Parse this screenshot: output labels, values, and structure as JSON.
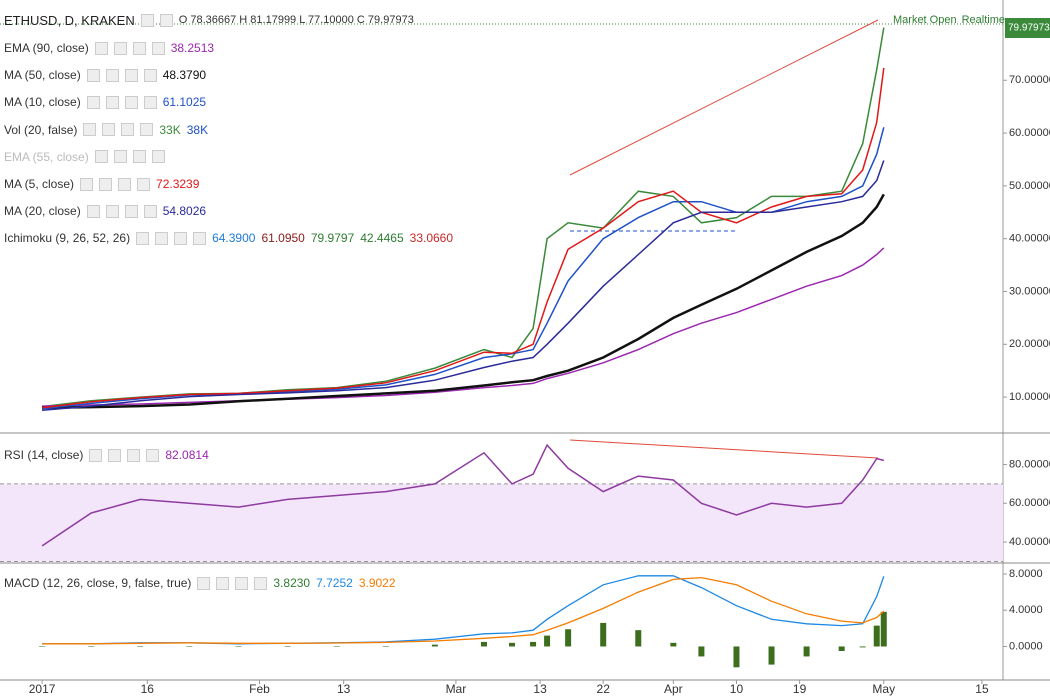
{
  "chart_data": [
    {
      "type": "line",
      "title": "ETHUSD, D, KRAKEN",
      "ohlc": "O 78.36667 H 81.17999 L 77.10000 C 79.97973",
      "last_price": "79.97973",
      "status": "Market Open",
      "mode": "Realtime",
      "color": "#3a8a3a",
      "x": [
        0,
        7,
        14,
        21,
        28,
        35,
        42,
        49,
        56,
        63,
        67,
        70,
        72,
        75,
        80,
        85,
        90,
        94,
        99,
        104,
        109,
        114,
        117,
        119,
        120
      ],
      "values": [
        8.2,
        9.3,
        10.0,
        10.6,
        10.7,
        11.4,
        11.8,
        13.0,
        15.5,
        19.0,
        17.5,
        23,
        40,
        43,
        42,
        49,
        48,
        43,
        44,
        48,
        48,
        49,
        58,
        72,
        79.98
      ],
      "xlim": [
        -6,
        137
      ],
      "ylim": [
        3.2,
        85.2
      ],
      "yticks": [
        {
          "value": 10,
          "label": "10.00000"
        },
        {
          "value": 20,
          "label": "20.00000"
        },
        {
          "value": 30,
          "label": "30.00000"
        },
        {
          "value": 40,
          "label": "40.00000"
        },
        {
          "value": 50,
          "label": "50.00000"
        },
        {
          "value": 60,
          "label": "60.00000"
        },
        {
          "value": 70,
          "label": "70.00000"
        }
      ],
      "indicators": [
        {
          "name": "EMA (90, close)",
          "readings": [
            {
              "text": "38.2513",
              "color": "#9c27b0"
            }
          ],
          "color": "#9c27b0",
          "values": [
            8.3,
            8.5,
            8.7,
            9,
            9.3,
            9.6,
            9.9,
            10.3,
            10.9,
            11.8,
            12.2,
            12.6,
            13.5,
            14.5,
            16.5,
            19,
            22,
            24,
            26,
            28.5,
            31,
            33,
            35,
            37,
            38.25
          ]
        },
        {
          "name": "MA (50, close)",
          "readings": [
            {
              "text": "48.3790",
              "color": "#111111"
            }
          ],
          "color": "#111111",
          "values": [
            8,
            8.1,
            8.3,
            8.6,
            9.2,
            9.7,
            10.2,
            10.7,
            11.2,
            12.2,
            12.8,
            13.2,
            14,
            15,
            17.5,
            21,
            25,
            27.5,
            30.5,
            34,
            37.5,
            40.5,
            43,
            46,
            48.38
          ]
        },
        {
          "name": "MA (10, close)",
          "readings": [
            {
              "text": "61.1025",
              "color": "#1e50c8"
            }
          ],
          "color": "#1e50c8",
          "values": [
            7.8,
            8.8,
            9.7,
            10.4,
            10.6,
            11,
            11.5,
            12.3,
            14.3,
            17.5,
            18.2,
            19,
            24,
            32,
            40,
            44,
            47,
            47,
            45,
            45,
            47,
            48,
            50,
            56,
            61.1
          ]
        },
        {
          "name": "Vol (20, false)",
          "readings": [
            {
              "text": "33K",
              "color": "#3a8a3a"
            },
            {
              "text": "38K",
              "color": "#1e50c8"
            }
          ]
        },
        {
          "name": "EMA (55, close)",
          "readings": [],
          "disabled": true
        },
        {
          "name": "MA (5, close)",
          "readings": [
            {
              "text": "72.3239",
              "color": "#e01818"
            }
          ],
          "color": "#e01818",
          "values": [
            8,
            9.1,
            9.9,
            10.5,
            10.7,
            11.2,
            11.7,
            12.7,
            15,
            18.5,
            18.3,
            20,
            28,
            38,
            42,
            47,
            49,
            45,
            43,
            46,
            48,
            48.5,
            53,
            62,
            72.32
          ]
        },
        {
          "name": "MA (20, close)",
          "readings": [
            {
              "text": "54.8026",
              "color": "#2a2a9a"
            }
          ],
          "color": "#2a2a9a",
          "values": [
            7.5,
            8.3,
            9.3,
            10.1,
            10.5,
            10.8,
            11.2,
            11.8,
            13.2,
            15.6,
            16.8,
            17.5,
            20,
            24,
            31,
            37,
            43,
            45,
            45,
            45,
            46,
            47,
            48,
            51,
            54.8
          ]
        },
        {
          "name": "Ichimoku (9, 26, 52, 26)",
          "readings": [
            {
              "text": "64.3900",
              "color": "#1e7ad8"
            },
            {
              "text": "61.0950",
              "color": "#8b1a1a"
            },
            {
              "text": "79.9797",
              "color": "#2e7d32"
            },
            {
              "text": "42.4465",
              "color": "#2e7d32"
            },
            {
              "text": "33.0660",
              "color": "#c62828"
            }
          ]
        }
      ]
    },
    {
      "type": "line",
      "x": [
        0,
        7,
        14,
        21,
        28,
        35,
        42,
        49,
        56,
        63,
        67,
        70,
        72,
        75,
        80,
        85,
        90,
        94,
        99,
        104,
        109,
        114,
        117,
        119,
        120
      ],
      "ylim": [
        29.2,
        95.7
      ],
      "yticks": [
        {
          "value": 40,
          "label": "40.00000"
        },
        {
          "value": 60,
          "label": "60.00000"
        },
        {
          "value": 80,
          "label": "80.00000"
        }
      ],
      "band": [
        30,
        70
      ],
      "indicators": [
        {
          "name": "RSI (14, close)",
          "readings": [
            {
              "text": "82.0814",
              "color": "#9c27b0"
            }
          ],
          "color": "#8e3aa0",
          "values": [
            38,
            55,
            62,
            60,
            58,
            62,
            64,
            66,
            70,
            86,
            70,
            75,
            90,
            78,
            66,
            74,
            72,
            60,
            54,
            60,
            58,
            60,
            72,
            83,
            82.08
          ]
        }
      ]
    },
    {
      "type": "line",
      "x": [
        0,
        7,
        14,
        21,
        28,
        35,
        42,
        49,
        56,
        63,
        67,
        70,
        72,
        75,
        80,
        85,
        90,
        94,
        99,
        104,
        109,
        114,
        117,
        119,
        120
      ],
      "ylim": [
        -3.7,
        9.1
      ],
      "yticks": [
        {
          "value": 0,
          "label": "0.0000"
        },
        {
          "value": 4,
          "label": "4.0000"
        },
        {
          "value": 8,
          "label": "8.0000"
        }
      ],
      "xticks": [
        {
          "value": 0,
          "label": "2017"
        },
        {
          "value": 15,
          "label": "16"
        },
        {
          "value": 31,
          "label": "Feb"
        },
        {
          "value": 43,
          "label": "13"
        },
        {
          "value": 59,
          "label": "Mar"
        },
        {
          "value": 71,
          "label": "13"
        },
        {
          "value": 80,
          "label": "22"
        },
        {
          "value": 90,
          "label": "Apr"
        },
        {
          "value": 99,
          "label": "10"
        },
        {
          "value": 108,
          "label": "19"
        },
        {
          "value": 120,
          "label": "May"
        },
        {
          "value": 134,
          "label": "15"
        }
      ],
      "indicators": [
        {
          "name": "MACD (12, 26, close, 9, false, true)",
          "readings": [
            {
              "text": "3.8230",
              "color": "#2e7d32"
            },
            {
              "text": "7.7252",
              "color": "#1e88e5"
            },
            {
              "text": "3.9022",
              "color": "#f57c00"
            }
          ],
          "series": [
            {
              "style": "bar",
              "color": "#3c6e1e",
              "values": [
                0,
                0,
                0.05,
                0,
                -0.05,
                0,
                0.02,
                0.05,
                0.2,
                0.5,
                0.4,
                0.5,
                1.2,
                1.9,
                2.6,
                1.8,
                0.4,
                -1.1,
                -2.3,
                -2,
                -1.1,
                -0.5,
                -0.1,
                2.3,
                3.82
              ]
            },
            {
              "style": "line",
              "color": "#1e88e5",
              "values": [
                0.3,
                0.3,
                0.4,
                0.4,
                0.3,
                0.35,
                0.4,
                0.5,
                0.8,
                1.4,
                1.5,
                1.8,
                3,
                4.5,
                6.8,
                7.8,
                7.8,
                6.5,
                4.5,
                3,
                2.5,
                2.3,
                2.5,
                5.5,
                7.73
              ]
            },
            {
              "style": "line",
              "color": "#f57c00",
              "values": [
                0.3,
                0.3,
                0.35,
                0.4,
                0.35,
                0.35,
                0.38,
                0.45,
                0.6,
                0.9,
                1.1,
                1.3,
                1.8,
                2.6,
                4.2,
                6,
                7.4,
                7.6,
                6.8,
                5,
                3.6,
                2.8,
                2.6,
                3.2,
                3.9
              ]
            }
          ]
        }
      ]
    }
  ]
}
